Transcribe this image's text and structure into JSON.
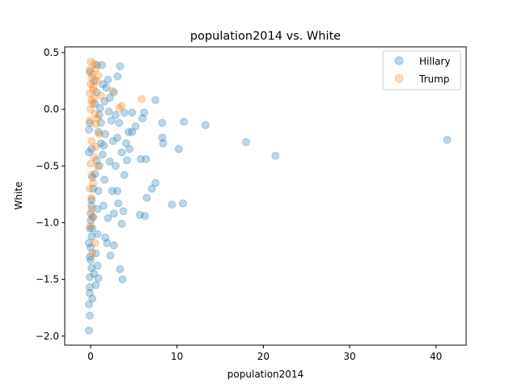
{
  "chart_data": {
    "type": "scatter",
    "title": "population2014 vs. White",
    "xlabel": "population2014",
    "ylabel": "White",
    "xlim": [
      -3,
      43.5
    ],
    "ylim": [
      -2.08,
      0.55
    ],
    "xticks": [
      0,
      10,
      20,
      30,
      40
    ],
    "yticks": [
      -2.0,
      -1.5,
      -1.0,
      -0.5,
      0.0,
      0.5
    ],
    "xtick_labels": [
      "0",
      "10",
      "20",
      "30",
      "40"
    ],
    "ytick_labels": [
      "−2.0",
      "−1.5",
      "−1.0",
      "−0.5",
      "0.0",
      "0.5"
    ],
    "grid": false,
    "legend_position": "top-right",
    "series": [
      {
        "name": "Hillary",
        "color": "#1f77b4",
        "points": [
          [
            41.3,
            -0.27
          ],
          [
            21.4,
            -0.41
          ],
          [
            18.0,
            -0.29
          ],
          [
            13.3,
            -0.14
          ],
          [
            10.8,
            -0.11
          ],
          [
            10.2,
            -0.35
          ],
          [
            10.7,
            -0.83
          ],
          [
            9.4,
            -0.84
          ],
          [
            8.3,
            -0.12
          ],
          [
            8.3,
            -0.25
          ],
          [
            8.4,
            -0.3
          ],
          [
            7.5,
            0.08
          ],
          [
            7.5,
            -0.65
          ],
          [
            7.1,
            -0.7
          ],
          [
            6.5,
            -0.78
          ],
          [
            6.3,
            -0.94
          ],
          [
            5.7,
            -0.93
          ],
          [
            6.4,
            -0.44
          ],
          [
            5.8,
            -0.44
          ],
          [
            6.2,
            -0.03
          ],
          [
            6.0,
            -0.08
          ],
          [
            5.2,
            -0.15
          ],
          [
            4.8,
            -0.03
          ],
          [
            4.8,
            -0.2
          ],
          [
            4.5,
            -0.35
          ],
          [
            4.2,
            -0.45
          ],
          [
            4.1,
            -0.3
          ],
          [
            3.9,
            -0.58
          ],
          [
            3.8,
            -0.9
          ],
          [
            3.6,
            -1.01
          ],
          [
            3.7,
            -1.5
          ],
          [
            3.4,
            -1.41
          ],
          [
            3.4,
            0.38
          ],
          [
            3.1,
            0.29
          ],
          [
            1.3,
            0.39
          ],
          [
            0.7,
            0.39
          ],
          [
            2.0,
            0.26
          ],
          [
            1.8,
            0.19
          ],
          [
            2.7,
            0.15
          ],
          [
            2.9,
            -0.05
          ],
          [
            3.1,
            -0.25
          ],
          [
            2.9,
            -0.5
          ],
          [
            3.1,
            -0.72
          ],
          [
            3.2,
            -0.83
          ],
          [
            2.5,
            -0.72
          ],
          [
            2.7,
            -0.92
          ],
          [
            2.7,
            -1.2
          ],
          [
            2.3,
            -1.29
          ],
          [
            1.9,
            -1.18
          ],
          [
            1.7,
            -1.13
          ],
          [
            2.0,
            -0.96
          ],
          [
            1.5,
            -0.85
          ],
          [
            1.6,
            -0.62
          ],
          [
            1.4,
            -0.4
          ],
          [
            1.2,
            -0.3
          ],
          [
            1.0,
            -0.5
          ],
          [
            0.9,
            -0.72
          ],
          [
            0.8,
            -0.88
          ],
          [
            0.8,
            -1.1
          ],
          [
            0.6,
            -1.27
          ],
          [
            0.8,
            -1.38
          ],
          [
            0.9,
            -1.49
          ],
          [
            0.6,
            -1.55
          ],
          [
            0.4,
            -1.45
          ],
          [
            0.3,
            -0.95
          ],
          [
            0.2,
            -0.6
          ],
          [
            0.1,
            -0.35
          ],
          [
            1.1,
            0.01
          ],
          [
            1.6,
            0.07
          ],
          [
            2.1,
            -0.02
          ],
          [
            2.4,
            -0.1
          ],
          [
            3.6,
            -0.38
          ],
          [
            4.4,
            -0.2
          ],
          [
            2.2,
            -0.46
          ],
          [
            1.7,
            -0.22
          ],
          [
            1.2,
            -0.12
          ],
          [
            0.7,
            0.15
          ],
          [
            0.4,
            0.25
          ],
          [
            -0.1,
            0.33
          ],
          [
            -0.2,
            -0.18
          ],
          [
            -0.2,
            -0.38
          ],
          [
            0.0,
            -0.92
          ],
          [
            -0.1,
            -1.05
          ],
          [
            -0.2,
            -1.18
          ],
          [
            0.0,
            -1.33
          ],
          [
            -0.1,
            -1.48
          ],
          [
            -0.1,
            -1.62
          ],
          [
            -0.2,
            -1.72
          ],
          [
            -0.1,
            -1.82
          ],
          [
            -0.2,
            -1.95
          ],
          [
            -0.1,
            -1.57
          ],
          [
            0.1,
            -1.4
          ],
          [
            0.0,
            -1.22
          ],
          [
            0.1,
            -1.12
          ],
          [
            0.0,
            -0.98
          ],
          [
            0.1,
            -0.8
          ],
          [
            0.3,
            -0.7
          ],
          [
            0.5,
            -0.57
          ],
          [
            0.7,
            -0.45
          ],
          [
            0.9,
            -0.2
          ],
          [
            1.0,
            -0.05
          ],
          [
            0.5,
            0.05
          ],
          [
            1.5,
            -0.32
          ],
          [
            2.6,
            -0.28
          ],
          [
            3.3,
            -0.12
          ],
          [
            3.9,
            -0.03
          ],
          [
            2.2,
            0.1
          ],
          [
            1.4,
            0.22
          ],
          [
            0.2,
            -1.67
          ],
          [
            -0.1,
            -1.3
          ],
          [
            0.2,
            -1.05
          ],
          [
            0.1,
            -0.85
          ],
          [
            -0.1,
            -0.12
          ]
        ]
      },
      {
        "name": "Trump",
        "color": "#ff7f0e",
        "points": [
          [
            5.9,
            0.09
          ],
          [
            3.6,
            0.03
          ],
          [
            3.3,
            0.01
          ],
          [
            2.5,
            0.16
          ],
          [
            1.2,
            0.12
          ],
          [
            0.9,
            0.3
          ],
          [
            0.6,
            0.36
          ],
          [
            0.4,
            0.4
          ],
          [
            0.3,
            0.2
          ],
          [
            0.2,
            0.05
          ],
          [
            0.5,
            -0.04
          ],
          [
            0.8,
            -0.08
          ],
          [
            1.0,
            -0.22
          ],
          [
            0.6,
            -0.33
          ],
          [
            0.4,
            -0.42
          ],
          [
            0.8,
            -0.5
          ],
          [
            0.3,
            -0.65
          ],
          [
            0.1,
            -0.78
          ],
          [
            0.2,
            -0.95
          ],
          [
            0.5,
            -1.18
          ],
          [
            0.2,
            -1.27
          ],
          [
            0.0,
            0.42
          ],
          [
            -0.1,
            0.35
          ],
          [
            0.1,
            0.28
          ],
          [
            0.0,
            0.22
          ],
          [
            -0.1,
            0.14
          ],
          [
            0.1,
            0.08
          ],
          [
            0.0,
            0.0
          ],
          [
            -0.1,
            -0.1
          ],
          [
            0.1,
            -0.28
          ],
          [
            0.0,
            -0.48
          ],
          [
            0.1,
            -0.58
          ],
          [
            -0.1,
            -0.7
          ],
          [
            0.1,
            -0.88
          ],
          [
            0.0,
            -1.03
          ],
          [
            0.2,
            0.31
          ],
          [
            0.3,
            0.17
          ],
          [
            0.4,
            0.1
          ],
          [
            0.6,
            -0.13
          ],
          [
            0.7,
            0.25
          ]
        ]
      }
    ]
  }
}
